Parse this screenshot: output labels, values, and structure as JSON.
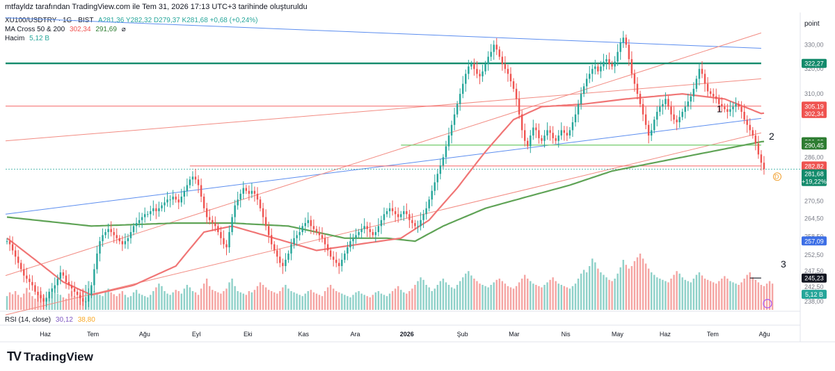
{
  "header": {
    "title": "mtfayldz tarafından TradingView.com ile Tem 31, 2026 17:13 UTC+3 tarihinde oluşturuldu"
  },
  "legend": {
    "symbol": "XU100/USDTRY · 1G · BIST",
    "ohlc": "A281,36  Y282,32  D279,37  K281,68  +0,68 (+0,24%)",
    "ma_name": "MA Cross 50 & 200",
    "ma_fast": "302,34",
    "ma_slow": "291,69",
    "ma_suffix": "⌀",
    "volume_name": "Hacim",
    "volume_value": "5,12 B",
    "rsi_name": "RSI (14, close)",
    "rsi_value": "30,12",
    "rsi_ma": "38,80"
  },
  "brand": {
    "logo_text": "TV",
    "name": "TradingView"
  },
  "colors": {
    "up": "#26a69a",
    "down": "#ef5350",
    "vol_up": "#8fd1c9",
    "vol_down": "#f5a5a3",
    "ma_fast": "#f07575",
    "ma_slow": "#5fa356",
    "blue_line": "#5b8def",
    "red_line": "#f28b82",
    "teal_line": "#138a6b",
    "green_line": "#7ccf76",
    "red_h": "#f56565"
  },
  "chart_data": {
    "type": "candlestick",
    "y_axis_label": "point",
    "ylim": [
      235.5,
      342
    ],
    "y_scale": "log",
    "y_ticks": [
      {
        "value": 238,
        "label": "238,00"
      },
      {
        "value": 242.5,
        "label": "242,50"
      },
      {
        "value": 247.5,
        "label": "247,50"
      },
      {
        "value": 252.5,
        "label": "252,50"
      },
      {
        "value": 258.5,
        "label": "258,50"
      },
      {
        "value": 264.5,
        "label": "264,50"
      },
      {
        "value": 270.5,
        "label": "270,50"
      },
      {
        "value": 278,
        "label": "278,00"
      },
      {
        "value": 286,
        "label": "286,00"
      },
      {
        "value": 310,
        "label": "310,00"
      },
      {
        "value": 320,
        "label": "320,00"
      },
      {
        "value": 330,
        "label": "330,00"
      }
    ],
    "x_labels": [
      "Haz",
      "Tem",
      "Ağu",
      "Eyl",
      "Eki",
      "Kas",
      "Ara",
      "2026",
      "Şub",
      "Mar",
      "Nis",
      "May",
      "Haz",
      "Tem",
      "Ağu"
    ],
    "x_label_bold": "2026",
    "price_badges": [
      {
        "label": "322,27",
        "value": 322.27,
        "color": "#138a6b"
      },
      {
        "label": "305,19",
        "value": 305.19,
        "color": "#ef5350"
      },
      {
        "label": "302,34",
        "value": 302.34,
        "color": "#ef5350"
      },
      {
        "label": "291,69",
        "value": 291.69,
        "color": "#2e7d32"
      },
      {
        "label": "290,45",
        "value": 290.45,
        "color": "#2e7d32"
      },
      {
        "label": "282,82",
        "value": 282.82,
        "color": "#ef5350"
      },
      {
        "label": "281,68",
        "sub": "+19,22%",
        "value": 280.0,
        "color": "#138a6b"
      },
      {
        "label": "257,09",
        "value": 257.09,
        "color": "#3d6fe6"
      },
      {
        "label": "245,23",
        "value": 245.23,
        "color": "#131722"
      },
      {
        "label": "5,12 B",
        "value": 240.2,
        "color": "#26a69a"
      }
    ],
    "annotations": [
      "1",
      "2",
      "3"
    ],
    "marker_d": "D",
    "closes": [
      257,
      256,
      254,
      252,
      250,
      248,
      246,
      245,
      244,
      243,
      241,
      240,
      239,
      238,
      239,
      241,
      242,
      243,
      245,
      247,
      246,
      244,
      243,
      242,
      241,
      240,
      239,
      238,
      238,
      240,
      243,
      248,
      253,
      257,
      259,
      260,
      261,
      260,
      259,
      258,
      257,
      256,
      257,
      258,
      260,
      262,
      263,
      264,
      265,
      266,
      266,
      267,
      268,
      267,
      268,
      269,
      270,
      271,
      271,
      272,
      271,
      270,
      272,
      274,
      276,
      278,
      279,
      278,
      276,
      272,
      268,
      265,
      264,
      263,
      262,
      260,
      258,
      256,
      255,
      260,
      265,
      269,
      271,
      273,
      275,
      274,
      273,
      274,
      273,
      271,
      268,
      265,
      262,
      259,
      256,
      254,
      252,
      250,
      249,
      251,
      253,
      256,
      258,
      259,
      260,
      262,
      263,
      264,
      262,
      261,
      260,
      259,
      258,
      256,
      254,
      252,
      251,
      250,
      249,
      251,
      253,
      255,
      257,
      258,
      259,
      260,
      261,
      262,
      261,
      260,
      259,
      260,
      262,
      264,
      266,
      267,
      268,
      267,
      266,
      265,
      266,
      267,
      266,
      264,
      263,
      262,
      262,
      264,
      266,
      268,
      271,
      274,
      277,
      280,
      283,
      286,
      290,
      294,
      298,
      302,
      306,
      310,
      314,
      318,
      321,
      322,
      320,
      318,
      317,
      319,
      322,
      325,
      327,
      330,
      328,
      325,
      322,
      320,
      318,
      315,
      312,
      308,
      302,
      296,
      292,
      290,
      294,
      297,
      296,
      293,
      292,
      294,
      296,
      295,
      293,
      292,
      294,
      296,
      295,
      294,
      296,
      299,
      302,
      306,
      310,
      313,
      316,
      318,
      320,
      321,
      319,
      321,
      323,
      324,
      322,
      321,
      323,
      327,
      331,
      333,
      330,
      324,
      318,
      314,
      310,
      306,
      302,
      298,
      294,
      296,
      300,
      303,
      305,
      306,
      308,
      305,
      302,
      300,
      299,
      301,
      303,
      305,
      307,
      309,
      312,
      316,
      320,
      318,
      314,
      311,
      310,
      309,
      308,
      306,
      305,
      304,
      303,
      304,
      305,
      306,
      305,
      303,
      300,
      298,
      296,
      294,
      291,
      287,
      284,
      281.68
    ],
    "ma50_anchors": [
      [
        0,
        258
      ],
      [
        20,
        244
      ],
      [
        30,
        240
      ],
      [
        45,
        243
      ],
      [
        60,
        249
      ],
      [
        70,
        260
      ],
      [
        80,
        262
      ],
      [
        95,
        258
      ],
      [
        110,
        254
      ],
      [
        125,
        256
      ],
      [
        140,
        258
      ],
      [
        150,
        264
      ],
      [
        160,
        275
      ],
      [
        170,
        288
      ],
      [
        180,
        300
      ],
      [
        190,
        305
      ],
      [
        205,
        306
      ],
      [
        220,
        308
      ],
      [
        240,
        310
      ],
      [
        255,
        308
      ],
      [
        268,
        302.34
      ]
    ],
    "ma200_anchors": [
      [
        0,
        265
      ],
      [
        30,
        262
      ],
      [
        60,
        263
      ],
      [
        80,
        263
      ],
      [
        100,
        262
      ],
      [
        120,
        258
      ],
      [
        135,
        258
      ],
      [
        145,
        257
      ],
      [
        155,
        262
      ],
      [
        170,
        268
      ],
      [
        185,
        272
      ],
      [
        200,
        276
      ],
      [
        215,
        281
      ],
      [
        230,
        284
      ],
      [
        250,
        288
      ],
      [
        268,
        291.69
      ]
    ],
    "volume": [
      0.22,
      0.28,
      0.25,
      0.3,
      0.24,
      0.2,
      0.26,
      0.35,
      0.28,
      0.22,
      0.18,
      0.25,
      0.3,
      0.24,
      0.2,
      0.27,
      0.32,
      0.38,
      0.26,
      0.24,
      0.2,
      0.18,
      0.26,
      0.3,
      0.22,
      0.19,
      0.28,
      0.34,
      0.4,
      0.46,
      0.36,
      0.3,
      0.28,
      0.24,
      0.22,
      0.3,
      0.34,
      0.28,
      0.25,
      0.22,
      0.26,
      0.3,
      0.24,
      0.2,
      0.22,
      0.28,
      0.32,
      0.26,
      0.24,
      0.22,
      0.2,
      0.24,
      0.3,
      0.36,
      0.42,
      0.38,
      0.3,
      0.26,
      0.24,
      0.28,
      0.32,
      0.3,
      0.26,
      0.34,
      0.4,
      0.36,
      0.3,
      0.28,
      0.24,
      0.34,
      0.42,
      0.5,
      0.38,
      0.32,
      0.3,
      0.28,
      0.26,
      0.3,
      0.34,
      0.44,
      0.5,
      0.38,
      0.3,
      0.28,
      0.26,
      0.24,
      0.3,
      0.28,
      0.32,
      0.38,
      0.44,
      0.4,
      0.36,
      0.32,
      0.3,
      0.28,
      0.26,
      0.3,
      0.36,
      0.4,
      0.34,
      0.3,
      0.28,
      0.26,
      0.24,
      0.22,
      0.26,
      0.3,
      0.32,
      0.28,
      0.26,
      0.24,
      0.22,
      0.3,
      0.36,
      0.4,
      0.34,
      0.3,
      0.28,
      0.26,
      0.24,
      0.22,
      0.2,
      0.24,
      0.28,
      0.3,
      0.26,
      0.24,
      0.22,
      0.2,
      0.24,
      0.28,
      0.3,
      0.26,
      0.24,
      0.22,
      0.26,
      0.3,
      0.34,
      0.38,
      0.32,
      0.28,
      0.26,
      0.3,
      0.34,
      0.4,
      0.46,
      0.52,
      0.48,
      0.4,
      0.36,
      0.3,
      0.34,
      0.4,
      0.46,
      0.5,
      0.44,
      0.4,
      0.36,
      0.34,
      0.4,
      0.46,
      0.52,
      0.58,
      0.62,
      0.55,
      0.5,
      0.46,
      0.42,
      0.4,
      0.38,
      0.36,
      0.4,
      0.44,
      0.48,
      0.5,
      0.46,
      0.42,
      0.38,
      0.36,
      0.34,
      0.38,
      0.44,
      0.5,
      0.56,
      0.5,
      0.46,
      0.42,
      0.4,
      0.38,
      0.36,
      0.4,
      0.44,
      0.48,
      0.52,
      0.46,
      0.42,
      0.4,
      0.38,
      0.36,
      0.34,
      0.38,
      0.42,
      0.5,
      0.58,
      0.64,
      0.6,
      0.7,
      0.82,
      0.76,
      0.66,
      0.6,
      0.56,
      0.52,
      0.48,
      0.46,
      0.5,
      0.58,
      0.68,
      0.8,
      0.72,
      0.66,
      0.7,
      0.78,
      0.84,
      0.9,
      0.82,
      0.74,
      0.66,
      0.6,
      0.56,
      0.52,
      0.5,
      0.48,
      0.46,
      0.44,
      0.5,
      0.56,
      0.62,
      0.58,
      0.52,
      0.48,
      0.46,
      0.44,
      0.5,
      0.56,
      0.6,
      0.55,
      0.5,
      0.48,
      0.46,
      0.44,
      0.42,
      0.46,
      0.5,
      0.54,
      0.5,
      0.46,
      0.44,
      0.42,
      0.4,
      0.44,
      0.5,
      0.56,
      0.6,
      0.52,
      0.48,
      0.44,
      0.4,
      0.38,
      0.42,
      0.46,
      0.42
    ]
  }
}
